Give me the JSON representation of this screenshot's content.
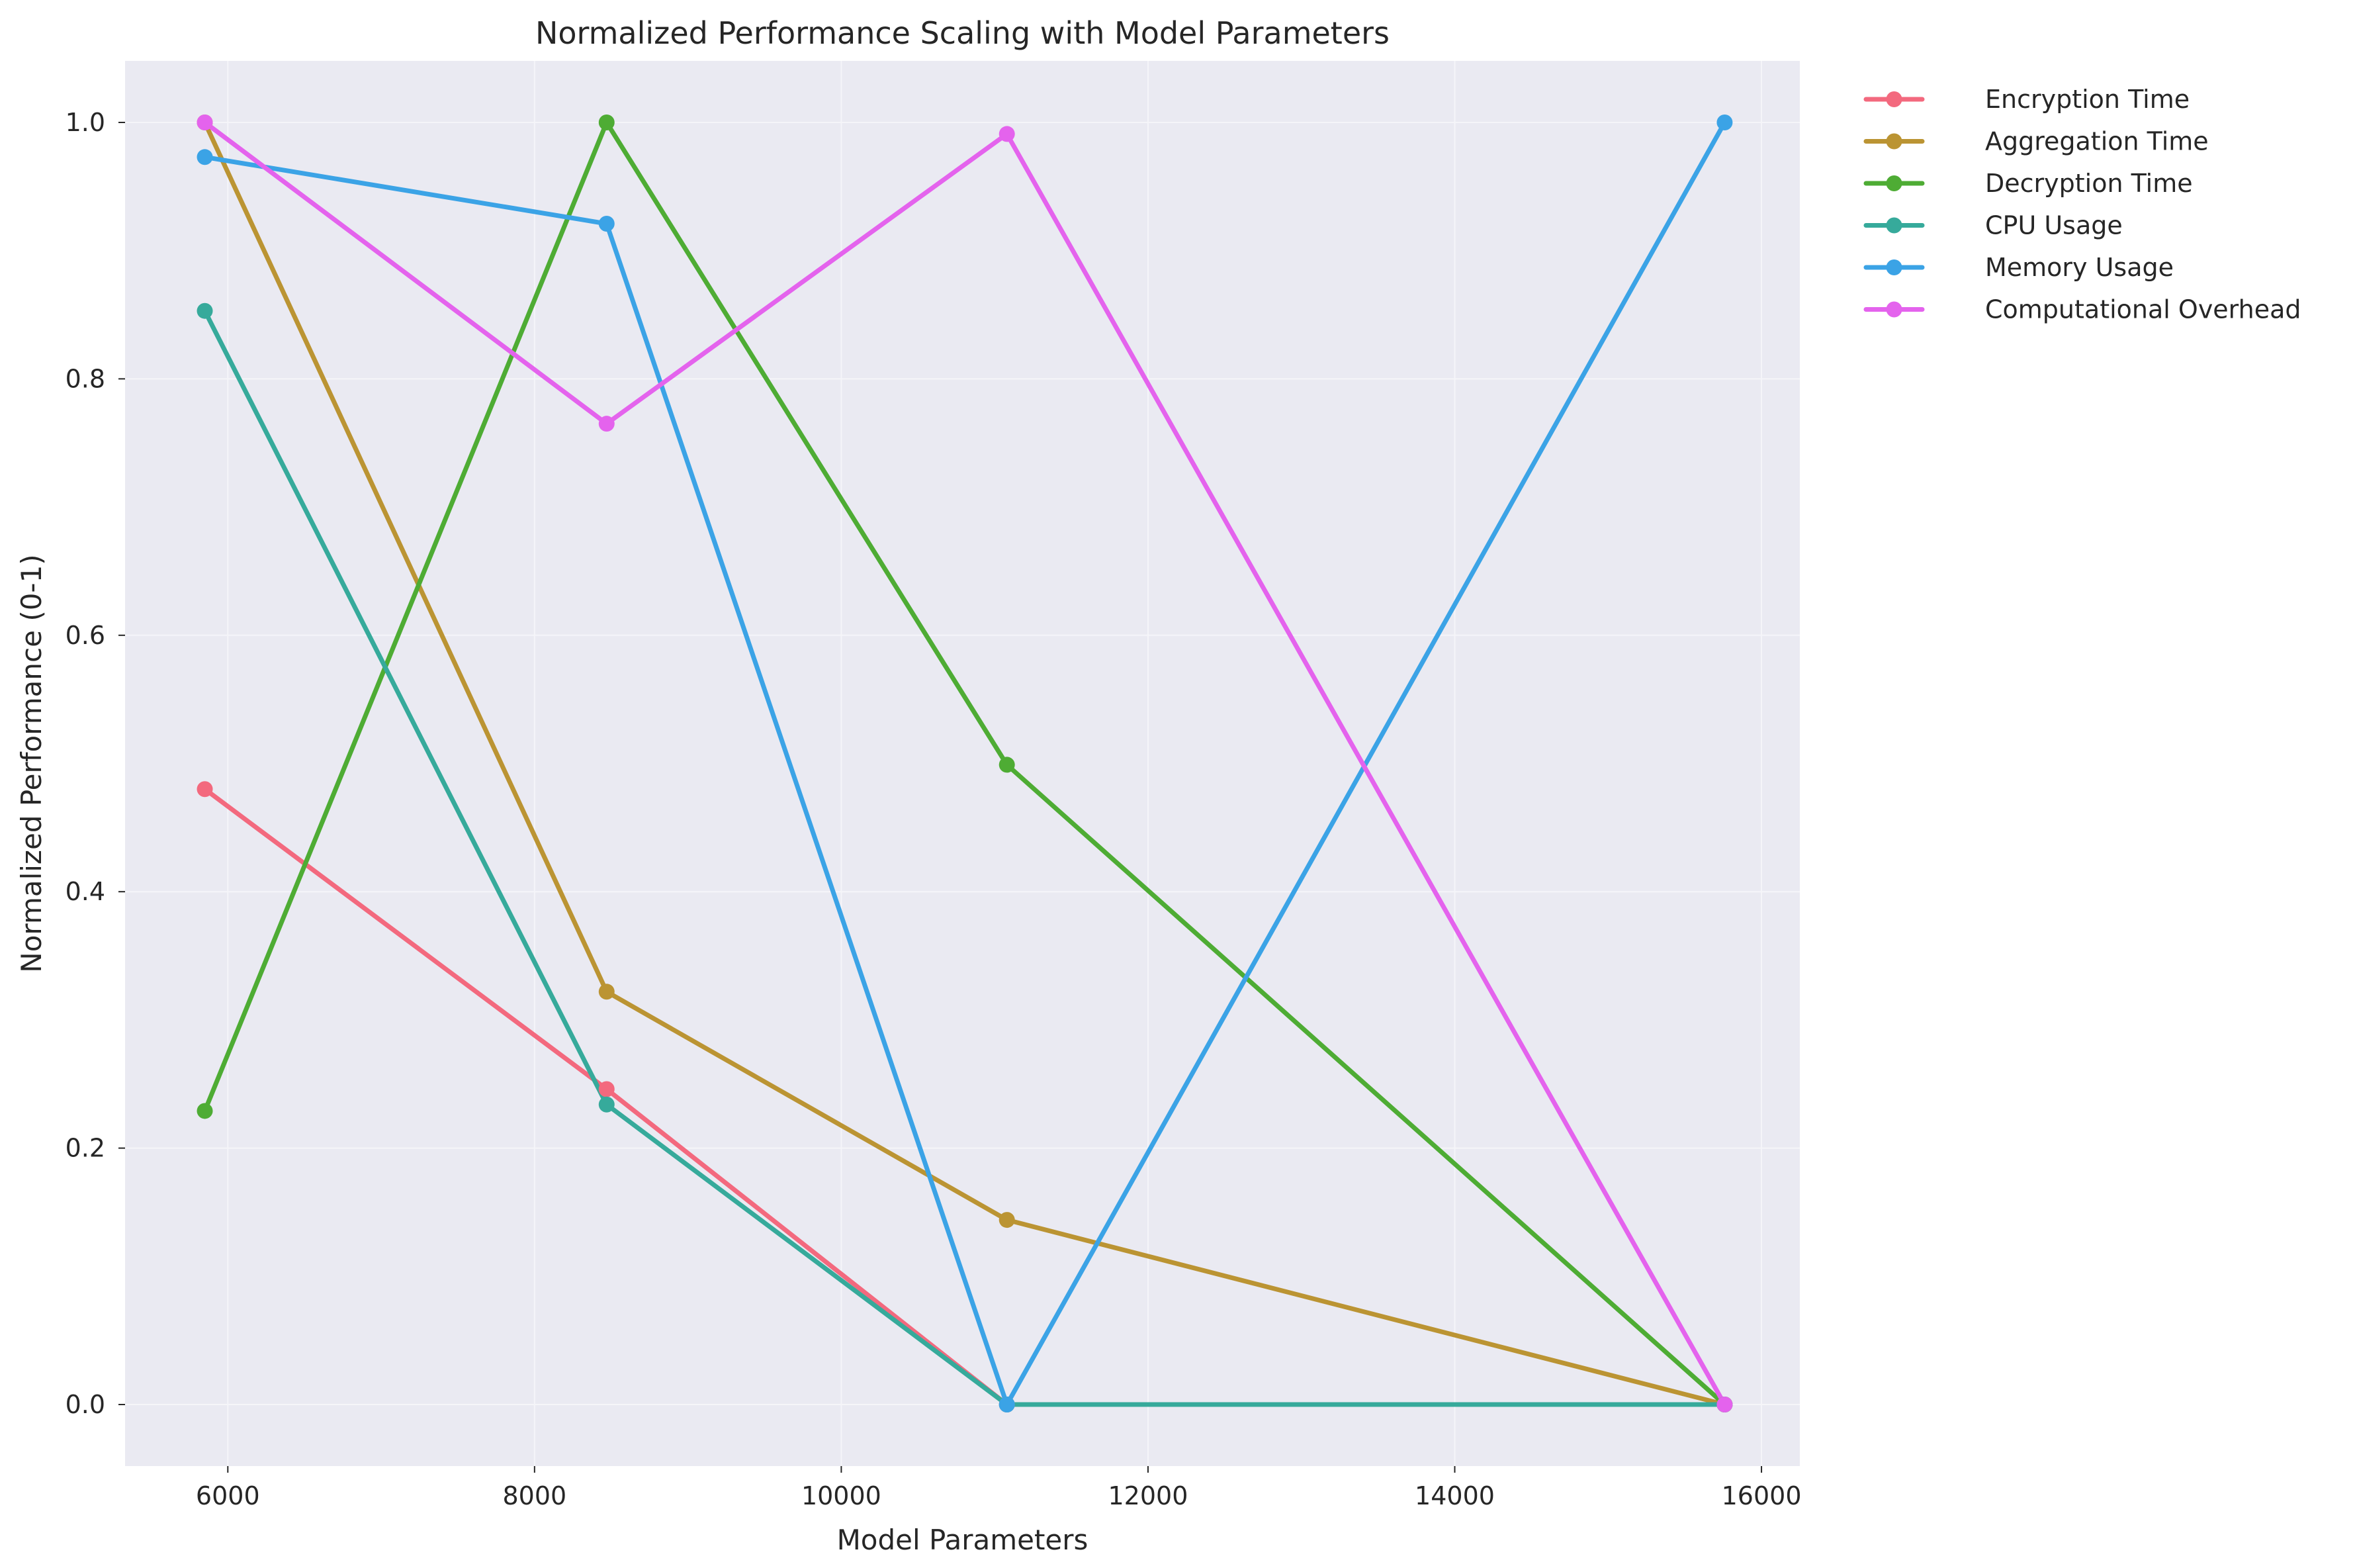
{
  "chart_data": {
    "type": "line",
    "title": "Normalized Performance Scaling with Model Parameters",
    "xlabel": "Model Parameters",
    "ylabel": "Normalized Performance (0-1)",
    "x": [
      5850,
      8470,
      11080,
      15760
    ],
    "xlim": [
      5330,
      16250
    ],
    "ylim": [
      -0.048,
      1.048
    ],
    "xticks": [
      6000,
      8000,
      10000,
      12000,
      14000,
      16000
    ],
    "yticks": [
      0.0,
      0.2,
      0.4,
      0.6,
      0.8,
      1.0
    ],
    "xtick_labels": [
      "6000",
      "8000",
      "10000",
      "12000",
      "14000",
      "16000"
    ],
    "ytick_labels": [
      "0.0",
      "0.2",
      "0.4",
      "0.6",
      "0.8",
      "1.0"
    ],
    "grid": true,
    "legend_position": "outside-top-right",
    "background_color": "#eaeaf2",
    "series": [
      {
        "name": "Encryption Time",
        "color": "#f3697e",
        "values": [
          0.48,
          0.246,
          0.0,
          0.0
        ]
      },
      {
        "name": "Aggregation Time",
        "color": "#bb9433",
        "values": [
          1.0,
          0.322,
          0.144,
          0.0
        ]
      },
      {
        "name": "Decryption Time",
        "color": "#4eac34",
        "values": [
          0.229,
          1.0,
          0.499,
          0.0
        ]
      },
      {
        "name": "CPU Usage",
        "color": "#36aa9b",
        "values": [
          0.853,
          0.234,
          0.0,
          0.0
        ]
      },
      {
        "name": "Memory Usage",
        "color": "#3ba3e6",
        "values": [
          0.973,
          0.921,
          0.0,
          1.0
        ]
      },
      {
        "name": "Computational Overhead",
        "color": "#e463ed",
        "values": [
          1.0,
          0.765,
          0.991,
          0.0
        ]
      }
    ]
  }
}
